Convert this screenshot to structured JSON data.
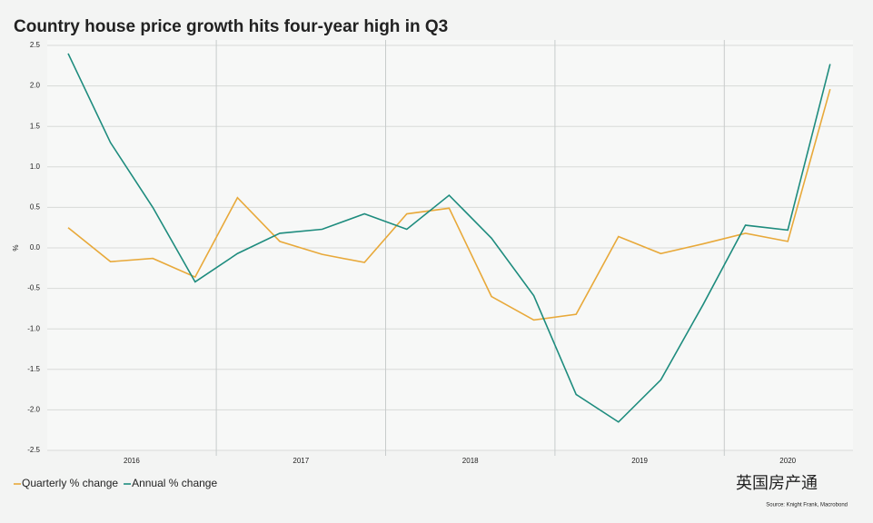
{
  "chart_data": {
    "type": "line",
    "title": "Country house price growth hits four-year high in Q3",
    "y_label": "%",
    "source": "Source: Knight Frank, Macrobond",
    "watermark": "英国房产通",
    "categories": [
      "2016",
      null,
      null,
      null,
      "2017",
      null,
      null,
      null,
      "2018",
      null,
      null,
      null,
      "2019",
      null,
      null,
      null,
      "2020",
      null,
      null
    ],
    "series": [
      {
        "name": "Quarterly % change",
        "color": "#e8a93a",
        "values": [
          0.25,
          -0.17,
          -0.13,
          -0.36,
          0.62,
          0.08,
          -0.08,
          -0.18,
          0.42,
          0.49,
          -0.6,
          -0.89,
          -0.82,
          0.14,
          -0.07,
          0.05,
          0.18,
          0.08,
          1.96
        ]
      },
      {
        "name": "Annual % change",
        "color": "#1e8c7e",
        "values": [
          2.4,
          1.3,
          0.5,
          -0.42,
          -0.07,
          0.18,
          0.23,
          0.42,
          0.23,
          0.65,
          0.12,
          -0.59,
          -1.81,
          -2.15,
          -1.63,
          -0.7,
          0.28,
          0.22,
          2.27
        ]
      }
    ],
    "ylim": [
      -2.5,
      2.5
    ],
    "yticks": [
      2.5,
      {
        "value": 2,
        "label": "2.0"
      },
      1.5,
      {
        "value": 1,
        "label": "1.0"
      },
      0.5,
      {
        "value": 0,
        "label": "0.0"
      },
      -0.5,
      {
        "value": -1,
        "label": "-1.0"
      },
      -1.5,
      {
        "value": -2,
        "label": "-2.0"
      },
      -2.5
    ],
    "grid": true
  }
}
